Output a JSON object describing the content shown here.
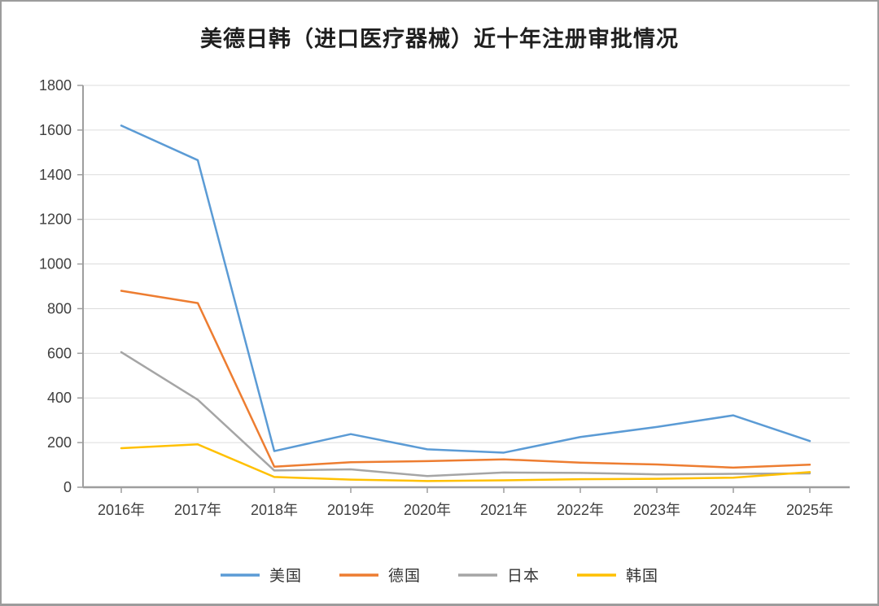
{
  "window": {
    "background": "#FFFFFF",
    "border_color": "#9C9C9C"
  },
  "chart_data": {
    "type": "line",
    "title": "美德日韩（进口医疗器械）近十年注册审批情况",
    "categories": [
      "2016年",
      "2017年",
      "2018年",
      "2019年",
      "2020年",
      "2021年",
      "2022年",
      "2023年",
      "2024年",
      "2025年"
    ],
    "series": [
      {
        "name": "美国",
        "color": "#5B9BD5",
        "values": [
          1620,
          1465,
          162,
          238,
          170,
          155,
          225,
          270,
          322,
          207
        ]
      },
      {
        "name": "德国",
        "color": "#ED7D31",
        "values": [
          880,
          825,
          92,
          112,
          117,
          125,
          110,
          102,
          88,
          101
        ]
      },
      {
        "name": "日本",
        "color": "#A5A5A5",
        "values": [
          605,
          392,
          75,
          80,
          50,
          66,
          64,
          58,
          60,
          62
        ]
      },
      {
        "name": "韩国",
        "color": "#FFC000",
        "values": [
          175,
          192,
          46,
          34,
          28,
          31,
          36,
          38,
          43,
          68
        ]
      }
    ],
    "ylim": [
      0,
      1800
    ],
    "ytick_step": 200,
    "yticks": [
      0,
      200,
      400,
      600,
      800,
      1000,
      1200,
      1400,
      1600,
      1800
    ],
    "grid": true,
    "legend_position": "bottom",
    "colors": {
      "grid": "#DCDCDC",
      "axis": "#9E9E9E",
      "tick_label": "#404040",
      "title": "#1F1F1F"
    }
  }
}
